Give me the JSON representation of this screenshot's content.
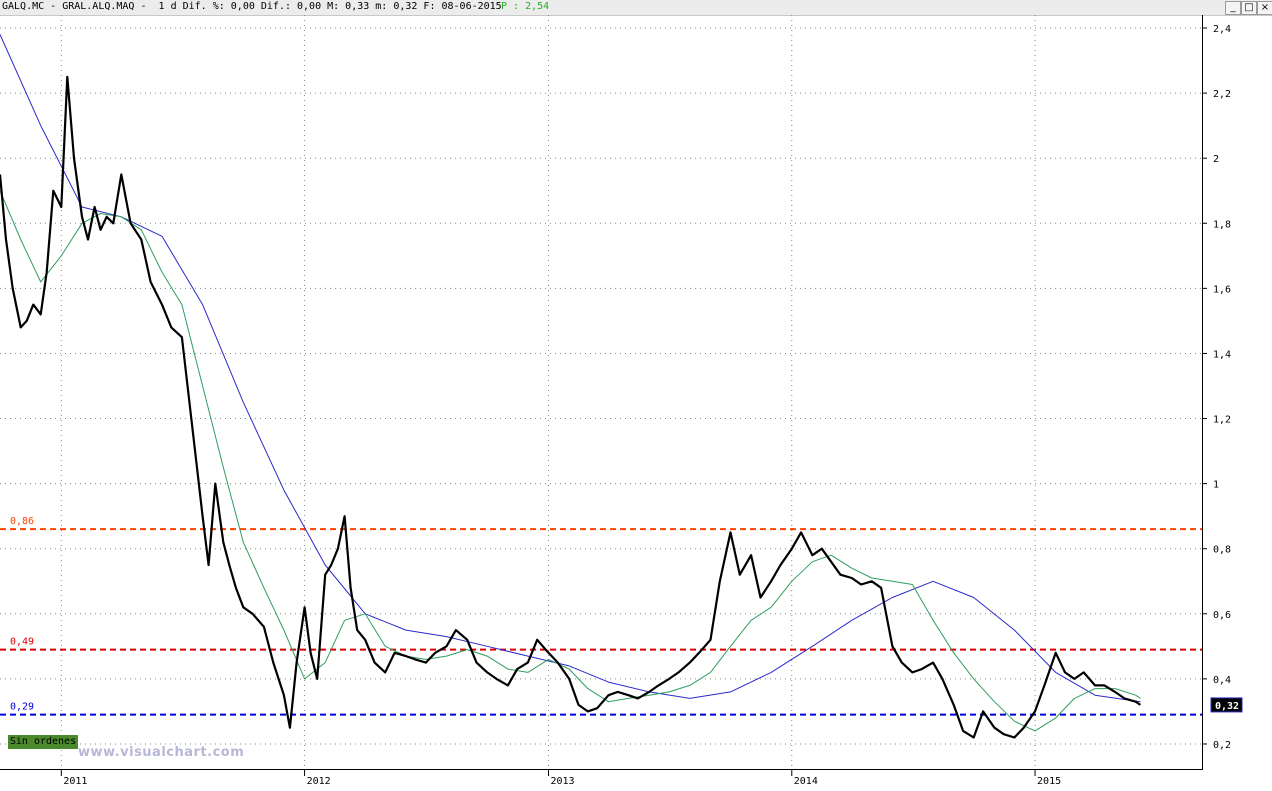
{
  "window": {
    "title": "GALQ.MC - GRAL.ALQ.MAQ -  1 d Dif. %: 0,00 Dif.: 0,00 M: 0,33 m: 0,32 F: 08-06-2015",
    "title_extra": "P : 2,54",
    "minimize": "_",
    "maximize": "□",
    "close": "×"
  },
  "badges": {
    "ordenes": "Sin ordenes",
    "watermark": "www.visualchart.com"
  },
  "chart_data": {
    "type": "line",
    "title": "",
    "xlabel": "",
    "ylabel": "",
    "ylim": [
      0.12,
      2.44
    ],
    "xlim": [
      "2010-10-01",
      "2015-09-10"
    ],
    "y_ticks": [
      0.2,
      0.4,
      0.6,
      0.8,
      1,
      1.2,
      1.4,
      1.6,
      1.8,
      2,
      2.2,
      2.4
    ],
    "y_tick_labels": [
      "0,2",
      "0,4",
      "0,6",
      "0,8",
      "1",
      "1,2",
      "1,4",
      "1,6",
      "1,8",
      "2",
      "2,2",
      "2,4"
    ],
    "x_ticks": [
      "2011-01-01",
      "2012-01-01",
      "2013-01-01",
      "2014-01-01",
      "2015-01-01"
    ],
    "x_tick_labels": [
      "2011",
      "2012",
      "2013",
      "2014",
      "2015"
    ],
    "grid": true,
    "last_price": "0,32",
    "last_price_value": 0.32,
    "colors": {
      "price": "#000000",
      "ma_short": "#2e9e5e",
      "ma_long": "#2a2ac8",
      "level_86": "#ff4400",
      "level_49": "#dd0000",
      "level_29": "#0000dd",
      "grid": "#888888"
    },
    "horizontal_lines": [
      {
        "label": "0,86",
        "value": 0.86,
        "color": "#ff4400"
      },
      {
        "label": "0,49",
        "value": 0.49,
        "color": "#dd0000"
      },
      {
        "label": "0,29",
        "value": 0.29,
        "color": "#0000dd"
      }
    ],
    "series": [
      {
        "key": "price",
        "x": [
          "2010-10-01",
          "2010-10-10",
          "2010-10-20",
          "2010-11-01",
          "2010-11-10",
          "2010-11-20",
          "2010-12-01",
          "2010-12-10",
          "2010-12-20",
          "2011-01-01",
          "2011-01-10",
          "2011-01-20",
          "2011-02-01",
          "2011-02-10",
          "2011-02-20",
          "2011-03-01",
          "2011-03-10",
          "2011-03-20",
          "2011-04-01",
          "2011-04-15",
          "2011-05-01",
          "2011-05-15",
          "2011-06-01",
          "2011-06-15",
          "2011-07-01",
          "2011-07-15",
          "2011-08-01",
          "2011-08-10",
          "2011-08-20",
          "2011-09-01",
          "2011-09-10",
          "2011-09-20",
          "2011-10-01",
          "2011-10-15",
          "2011-11-01",
          "2011-11-15",
          "2011-12-01",
          "2011-12-10",
          "2011-12-20",
          "2012-01-01",
          "2012-01-10",
          "2012-01-20",
          "2012-02-01",
          "2012-02-10",
          "2012-02-20",
          "2012-03-01",
          "2012-03-10",
          "2012-03-20",
          "2012-04-01",
          "2012-04-15",
          "2012-05-01",
          "2012-05-15",
          "2012-06-01",
          "2012-06-15",
          "2012-07-01",
          "2012-07-15",
          "2012-08-01",
          "2012-08-15",
          "2012-09-01",
          "2012-09-15",
          "2012-10-01",
          "2012-10-15",
          "2012-11-01",
          "2012-11-15",
          "2012-12-01",
          "2012-12-15",
          "2013-01-01",
          "2013-01-15",
          "2013-02-01",
          "2013-02-15",
          "2013-03-01",
          "2013-03-15",
          "2013-04-01",
          "2013-04-15",
          "2013-05-01",
          "2013-05-15",
          "2013-06-01",
          "2013-06-15",
          "2013-07-01",
          "2013-07-15",
          "2013-08-01",
          "2013-08-15",
          "2013-09-01",
          "2013-09-15",
          "2013-10-01",
          "2013-10-15",
          "2013-11-01",
          "2013-11-15",
          "2013-12-01",
          "2013-12-15",
          "2014-01-01",
          "2014-01-15",
          "2014-02-01",
          "2014-02-15",
          "2014-03-01",
          "2014-03-15",
          "2014-04-01",
          "2014-04-15",
          "2014-05-01",
          "2014-05-15",
          "2014-06-01",
          "2014-06-15",
          "2014-07-01",
          "2014-07-15",
          "2014-08-01",
          "2014-08-15",
          "2014-09-01",
          "2014-09-15",
          "2014-10-01",
          "2014-10-15",
          "2014-11-01",
          "2014-11-15",
          "2014-12-01",
          "2014-12-15",
          "2015-01-01",
          "2015-01-15",
          "2015-02-01",
          "2015-02-15",
          "2015-03-01",
          "2015-03-15",
          "2015-04-01",
          "2015-04-15",
          "2015-05-01",
          "2015-05-15",
          "2015-06-01",
          "2015-06-08"
        ],
        "values": [
          1.95,
          1.75,
          1.6,
          1.48,
          1.5,
          1.55,
          1.52,
          1.65,
          1.9,
          1.85,
          2.25,
          2.0,
          1.82,
          1.75,
          1.85,
          1.78,
          1.82,
          1.8,
          1.95,
          1.8,
          1.75,
          1.62,
          1.55,
          1.48,
          1.45,
          1.2,
          0.9,
          0.75,
          1.0,
          0.82,
          0.75,
          0.68,
          0.62,
          0.6,
          0.56,
          0.45,
          0.35,
          0.25,
          0.45,
          0.62,
          0.48,
          0.4,
          0.72,
          0.75,
          0.8,
          0.9,
          0.68,
          0.55,
          0.52,
          0.45,
          0.42,
          0.48,
          0.47,
          0.46,
          0.45,
          0.48,
          0.5,
          0.55,
          0.52,
          0.45,
          0.42,
          0.4,
          0.38,
          0.43,
          0.45,
          0.52,
          0.48,
          0.45,
          0.4,
          0.32,
          0.3,
          0.31,
          0.35,
          0.36,
          0.35,
          0.34,
          0.36,
          0.38,
          0.4,
          0.42,
          0.45,
          0.48,
          0.52,
          0.7,
          0.85,
          0.72,
          0.78,
          0.65,
          0.7,
          0.75,
          0.8,
          0.85,
          0.78,
          0.8,
          0.76,
          0.72,
          0.71,
          0.69,
          0.7,
          0.68,
          0.5,
          0.45,
          0.42,
          0.43,
          0.45,
          0.4,
          0.32,
          0.24,
          0.22,
          0.3,
          0.25,
          0.23,
          0.22,
          0.25,
          0.3,
          0.38,
          0.48,
          0.42,
          0.4,
          0.42,
          0.38,
          0.38,
          0.36,
          0.34,
          0.33,
          0.32
        ]
      },
      {
        "key": "ma_short",
        "x": [
          "2010-10-01",
          "2010-11-01",
          "2010-12-01",
          "2011-01-01",
          "2011-02-01",
          "2011-03-01",
          "2011-04-01",
          "2011-05-01",
          "2011-06-01",
          "2011-07-01",
          "2011-08-01",
          "2011-09-01",
          "2011-10-01",
          "2011-11-01",
          "2011-12-01",
          "2012-01-01",
          "2012-02-01",
          "2012-03-01",
          "2012-04-01",
          "2012-05-01",
          "2012-06-01",
          "2012-07-01",
          "2012-08-01",
          "2012-09-01",
          "2012-10-01",
          "2012-11-01",
          "2012-12-01",
          "2013-01-01",
          "2013-02-01",
          "2013-03-01",
          "2013-04-01",
          "2013-05-01",
          "2013-06-01",
          "2013-07-01",
          "2013-08-01",
          "2013-09-01",
          "2013-10-01",
          "2013-11-01",
          "2013-12-01",
          "2014-01-01",
          "2014-02-01",
          "2014-03-01",
          "2014-04-01",
          "2014-05-01",
          "2014-06-01",
          "2014-07-01",
          "2014-08-01",
          "2014-09-01",
          "2014-10-01",
          "2014-11-01",
          "2014-12-01",
          "2015-01-01",
          "2015-02-01",
          "2015-03-01",
          "2015-04-01",
          "2015-05-01",
          "2015-06-01",
          "2015-06-08"
        ],
        "values": [
          1.9,
          1.75,
          1.62,
          1.7,
          1.8,
          1.83,
          1.82,
          1.78,
          1.65,
          1.55,
          1.3,
          1.05,
          0.82,
          0.68,
          0.55,
          0.4,
          0.45,
          0.58,
          0.6,
          0.5,
          0.47,
          0.46,
          0.47,
          0.49,
          0.47,
          0.43,
          0.42,
          0.46,
          0.43,
          0.37,
          0.33,
          0.34,
          0.35,
          0.36,
          0.38,
          0.42,
          0.5,
          0.58,
          0.62,
          0.7,
          0.76,
          0.78,
          0.74,
          0.71,
          0.7,
          0.69,
          0.58,
          0.48,
          0.4,
          0.33,
          0.27,
          0.24,
          0.28,
          0.34,
          0.37,
          0.37,
          0.35,
          0.34
        ]
      },
      {
        "key": "ma_long",
        "x": [
          "2010-10-01",
          "2010-12-01",
          "2011-02-01",
          "2011-04-01",
          "2011-06-01",
          "2011-08-01",
          "2011-10-01",
          "2011-12-01",
          "2012-02-01",
          "2012-04-01",
          "2012-06-01",
          "2012-08-01",
          "2012-10-01",
          "2012-12-01",
          "2013-02-01",
          "2013-04-01",
          "2013-06-01",
          "2013-08-01",
          "2013-10-01",
          "2013-12-01",
          "2014-02-01",
          "2014-04-01",
          "2014-06-01",
          "2014-08-01",
          "2014-10-01",
          "2014-12-01",
          "2015-02-01",
          "2015-04-01",
          "2015-06-08"
        ],
        "values": [
          2.38,
          2.1,
          1.85,
          1.82,
          1.76,
          1.55,
          1.25,
          0.98,
          0.75,
          0.6,
          0.55,
          0.53,
          0.5,
          0.47,
          0.44,
          0.39,
          0.36,
          0.34,
          0.36,
          0.42,
          0.5,
          0.58,
          0.65,
          0.7,
          0.65,
          0.55,
          0.42,
          0.35,
          0.33
        ]
      }
    ]
  }
}
